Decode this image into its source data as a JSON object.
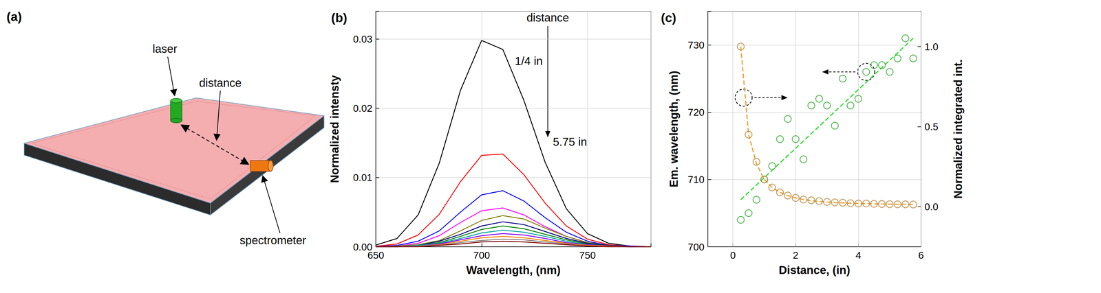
{
  "diagram": {
    "label": "(a)",
    "texts": {
      "laser": "laser",
      "distance": "distance",
      "spectrometer": "spectrometer"
    }
  },
  "chart_data": [
    {
      "label": "(b)",
      "type": "line",
      "x_label": "Wavelength, (nm)",
      "y_label": "Normalized intensty",
      "annotations": [
        "distance",
        "1/4 in",
        "5.75 in"
      ],
      "x": [
        650,
        660,
        670,
        680,
        690,
        700,
        710,
        720,
        730,
        740,
        750,
        760,
        770,
        780
      ],
      "series": [
        {
          "color": "#000000",
          "values": [
            0.00024,
            0.0012,
            0.0046,
            0.0121,
            0.0226,
            0.0298,
            0.0285,
            0.0211,
            0.0122,
            0.0055,
            0.0019,
            0.0005,
            0.0001,
            0
          ]
        },
        {
          "color": "#ff0000",
          "values": [
            7e-05,
            0.0004,
            0.0017,
            0.0047,
            0.0094,
            0.0132,
            0.0134,
            0.0104,
            0.0063,
            0.003,
            0.0011,
            0.0003,
            0.0001,
            0
          ]
        },
        {
          "color": "#0000ff",
          "values": [
            3e-05,
            0.0002,
            0.0008,
            0.0023,
            0.005,
            0.0075,
            0.0081,
            0.0066,
            0.0042,
            0.0021,
            0.0008,
            0.0002,
            0.0001,
            0
          ]
        },
        {
          "color": "#ff00ff",
          "values": [
            2e-05,
            0.0001,
            0.0005,
            0.0016,
            0.0035,
            0.0052,
            0.0056,
            0.0046,
            0.0029,
            0.0015,
            0.0006,
            0.0002,
            0,
            0
          ]
        },
        {
          "color": "#808000",
          "values": [
            0,
            0.0001,
            0.0003,
            0.0009,
            0.0023,
            0.0038,
            0.0045,
            0.004,
            0.0027,
            0.0015,
            0.0006,
            0.0002,
            0,
            0
          ]
        },
        {
          "color": "#000080",
          "values": [
            0,
            0,
            0.0002,
            0.0008,
            0.0018,
            0.003,
            0.0036,
            0.0032,
            0.0022,
            0.0012,
            0.0005,
            0.0002,
            0,
            0
          ]
        },
        {
          "color": "#008000",
          "values": [
            0,
            0,
            0.0002,
            0.0006,
            0.0015,
            0.0025,
            0.003,
            0.0026,
            0.0018,
            0.001,
            0.0004,
            0.0001,
            0,
            0
          ]
        },
        {
          "color": "#00a0a0",
          "values": [
            0,
            0,
            0.0002,
            0.0005,
            0.0012,
            0.002,
            0.0024,
            0.0021,
            0.0015,
            0.0008,
            0.0003,
            0.0001,
            0,
            0
          ]
        },
        {
          "color": "#8000ff",
          "values": [
            0,
            0,
            0.0001,
            0.0004,
            0.001,
            0.0016,
            0.0019,
            0.0017,
            0.0012,
            0.0006,
            0.0003,
            0.0001,
            0,
            0
          ]
        },
        {
          "color": "#ff8000",
          "values": [
            0,
            0,
            0.0001,
            0.0003,
            0.0008,
            0.0013,
            0.0015,
            0.0013,
            0.0009,
            0.0005,
            0.0002,
            0.0001,
            0,
            0
          ]
        },
        {
          "color": "#808080",
          "values": [
            0,
            0,
            0.0001,
            0.0002,
            0.0006,
            0.0009,
            0.0011,
            0.001,
            0.0007,
            0.0004,
            0.0001,
            0,
            0,
            0
          ]
        },
        {
          "color": "#800000",
          "values": [
            0,
            0,
            0,
            0.0002,
            0.0004,
            0.0007,
            0.0008,
            0.0007,
            0.0005,
            0.0003,
            0.0001,
            0,
            0,
            0
          ]
        }
      ],
      "xlim": [
        650,
        780
      ],
      "xticks": [
        650,
        700,
        750
      ],
      "ylim": [
        0,
        0.034
      ],
      "yticks": [
        {
          "value": 0,
          "label": "0.00"
        },
        {
          "value": 0.01,
          "label": "0.01"
        },
        {
          "value": 0.02,
          "label": "0.02"
        },
        {
          "value": 0.03,
          "label": "0.03"
        }
      ],
      "grid": true
    },
    {
      "label": "(c)",
      "type": "scatter",
      "x_label": "Distance, (in)",
      "y_label": "Em. wavelength, (nm)",
      "y2_label": "Normalized integrated int.",
      "xlim": [
        -0.8,
        6
      ],
      "xticks": [
        0,
        2,
        4,
        6
      ],
      "ylim": [
        700,
        735
      ],
      "yticks": [
        700,
        710,
        720,
        730
      ],
      "y2lim": [
        -0.25,
        1.22
      ],
      "y2ticks": [
        {
          "value": 0,
          "label": "0.0"
        },
        {
          "value": 0.5,
          "label": "0.5"
        },
        {
          "value": 1,
          "label": "1.0"
        }
      ],
      "grid": true,
      "series": [
        {
          "type": "scatter",
          "color": "#33aa33",
          "marker": "open_circle",
          "x": [
            0.25,
            0.5,
            0.75,
            1.0,
            1.25,
            1.5,
            1.75,
            2.0,
            2.25,
            2.5,
            2.75,
            3.0,
            3.25,
            3.5,
            3.75,
            4.0,
            4.25,
            4.5,
            4.75,
            5.0,
            5.25,
            5.5,
            5.75
          ],
          "values": [
            704,
            705,
            707,
            710,
            712,
            716,
            719,
            716,
            713,
            721,
            722,
            721,
            718,
            725,
            721,
            722,
            726,
            727,
            727,
            726,
            728,
            731,
            728
          ]
        },
        {
          "type": "scatter",
          "axis": "y2",
          "color": "#b8863b",
          "marker": "open_circle",
          "x": [
            0.25,
            0.5,
            0.75,
            1.0,
            1.25,
            1.5,
            1.75,
            2.0,
            2.25,
            2.5,
            2.75,
            3.0,
            3.25,
            3.5,
            3.75,
            4.0,
            4.25,
            4.5,
            4.75,
            5.0,
            5.25,
            5.5,
            5.75
          ],
          "values": [
            1.0,
            0.45,
            0.28,
            0.17,
            0.12,
            0.09,
            0.07,
            0.055,
            0.045,
            0.04,
            0.035,
            0.03,
            0.027,
            0.025,
            0.022,
            0.02,
            0.02,
            0.018,
            0.017,
            0.016,
            0.015,
            0.015,
            0.014
          ]
        },
        {
          "type": "line",
          "color": "#33dd33",
          "line_style": "dashed",
          "x": [
            0.25,
            5.75
          ],
          "values": [
            707,
            731
          ]
        },
        {
          "type": "line",
          "axis": "y2",
          "color": "#f0a030",
          "line_style": "dashed",
          "x": [
            0.25,
            0.5,
            0.75,
            1.0,
            1.25,
            1.5,
            1.75,
            2.0,
            2.25,
            2.5,
            2.75,
            3.0,
            3.25,
            3.5,
            3.75,
            4.0,
            4.25,
            4.5,
            4.75,
            5.0,
            5.25,
            5.5,
            5.75
          ],
          "values": [
            1.0,
            0.45,
            0.27,
            0.17,
            0.12,
            0.09,
            0.07,
            0.055,
            0.045,
            0.038,
            0.033,
            0.029,
            0.026,
            0.024,
            0.022,
            0.02,
            0.019,
            0.018,
            0.017,
            0.016,
            0.015,
            0.015,
            0.014
          ]
        }
      ]
    }
  ]
}
